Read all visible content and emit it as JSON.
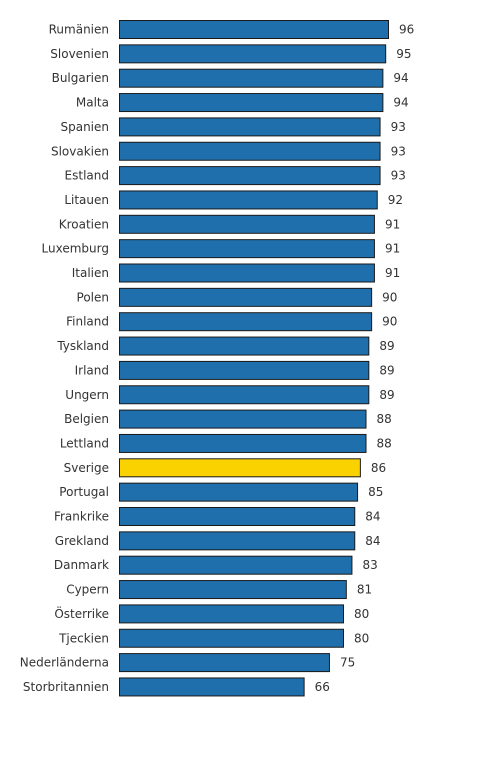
{
  "chart_data": {
    "type": "bar",
    "orientation": "horizontal",
    "categories": [
      "Rumänien",
      "Slovenien",
      "Bulgarien",
      "Malta",
      "Spanien",
      "Slovakien",
      "Estland",
      "Litauen",
      "Kroatien",
      "Luxemburg",
      "Italien",
      "Polen",
      "Finland",
      "Tyskland",
      "Irland",
      "Ungern",
      "Belgien",
      "Lettland",
      "Sverige",
      "Portugal",
      "Frankrike",
      "Grekland",
      "Danmark",
      "Cypern",
      "Österrike",
      "Tjeckien",
      "Nederländerna",
      "Storbritannien"
    ],
    "values": [
      96,
      95,
      94,
      94,
      93,
      93,
      93,
      92,
      91,
      91,
      91,
      90,
      90,
      89,
      89,
      89,
      88,
      88,
      86,
      85,
      84,
      84,
      83,
      81,
      80,
      80,
      75,
      66
    ],
    "highlight": "Sverige",
    "colors": {
      "bar": "#1f6fad",
      "highlight": "#f9d200",
      "border": "#1a1a1a"
    },
    "xlim": [
      0,
      96
    ],
    "grid": false,
    "legend": false,
    "data_labels": true
  }
}
